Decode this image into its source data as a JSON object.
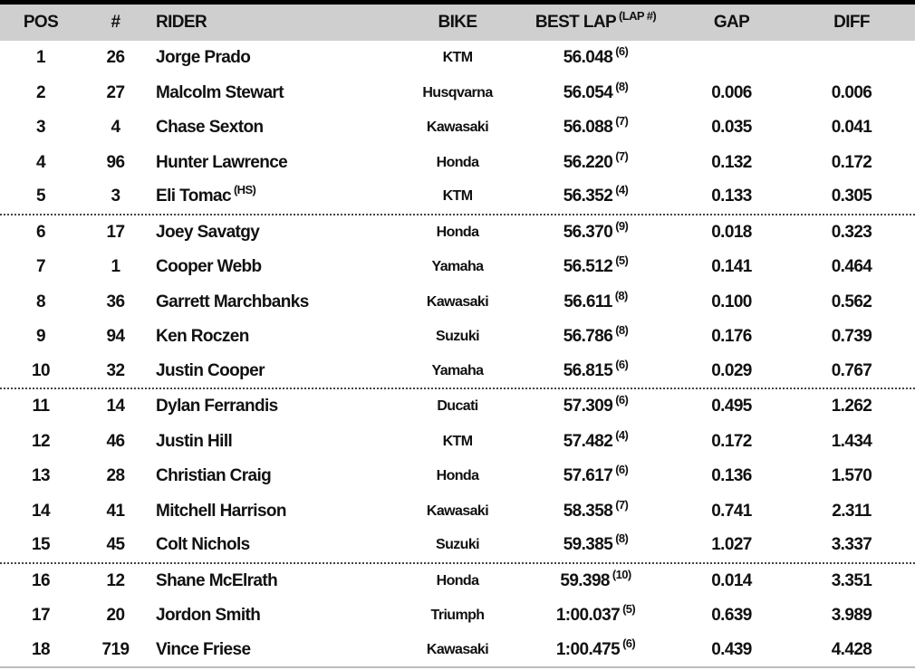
{
  "headers": {
    "pos": "POS",
    "num": "#",
    "rider": "RIDER",
    "bike": "BIKE",
    "best": "BEST LAP",
    "best_sup": "(LAP #)",
    "gap": "GAP",
    "diff": "DIFF"
  },
  "rows": [
    {
      "pos": "1",
      "num": "26",
      "rider": "Jorge Prado",
      "tag": "",
      "bike": "KTM",
      "best": "56.048",
      "lap": "(6)",
      "gap": "",
      "diff": ""
    },
    {
      "pos": "2",
      "num": "27",
      "rider": "Malcolm Stewart",
      "tag": "",
      "bike": "Husqvarna",
      "best": "56.054",
      "lap": "(8)",
      "gap": "0.006",
      "diff": "0.006"
    },
    {
      "pos": "3",
      "num": "4",
      "rider": "Chase Sexton",
      "tag": "",
      "bike": "Kawasaki",
      "best": "56.088",
      "lap": "(7)",
      "gap": "0.035",
      "diff": "0.041"
    },
    {
      "pos": "4",
      "num": "96",
      "rider": "Hunter Lawrence",
      "tag": "",
      "bike": "Honda",
      "best": "56.220",
      "lap": "(7)",
      "gap": "0.132",
      "diff": "0.172"
    },
    {
      "pos": "5",
      "num": "3",
      "rider": "Eli Tomac",
      "tag": "(HS)",
      "bike": "KTM",
      "best": "56.352",
      "lap": "(4)",
      "gap": "0.133",
      "diff": "0.305"
    },
    {
      "pos": "6",
      "num": "17",
      "rider": "Joey Savatgy",
      "tag": "",
      "bike": "Honda",
      "best": "56.370",
      "lap": "(9)",
      "gap": "0.018",
      "diff": "0.323"
    },
    {
      "pos": "7",
      "num": "1",
      "rider": "Cooper Webb",
      "tag": "",
      "bike": "Yamaha",
      "best": "56.512",
      "lap": "(5)",
      "gap": "0.141",
      "diff": "0.464"
    },
    {
      "pos": "8",
      "num": "36",
      "rider": "Garrett Marchbanks",
      "tag": "",
      "bike": "Kawasaki",
      "best": "56.611",
      "lap": "(8)",
      "gap": "0.100",
      "diff": "0.562"
    },
    {
      "pos": "9",
      "num": "94",
      "rider": "Ken Roczen",
      "tag": "",
      "bike": "Suzuki",
      "best": "56.786",
      "lap": "(8)",
      "gap": "0.176",
      "diff": "0.739"
    },
    {
      "pos": "10",
      "num": "32",
      "rider": "Justin Cooper",
      "tag": "",
      "bike": "Yamaha",
      "best": "56.815",
      "lap": "(6)",
      "gap": "0.029",
      "diff": "0.767"
    },
    {
      "pos": "11",
      "num": "14",
      "rider": "Dylan Ferrandis",
      "tag": "",
      "bike": "Ducati",
      "best": "57.309",
      "lap": "(6)",
      "gap": "0.495",
      "diff": "1.262"
    },
    {
      "pos": "12",
      "num": "46",
      "rider": "Justin Hill",
      "tag": "",
      "bike": "KTM",
      "best": "57.482",
      "lap": "(4)",
      "gap": "0.172",
      "diff": "1.434"
    },
    {
      "pos": "13",
      "num": "28",
      "rider": "Christian Craig",
      "tag": "",
      "bike": "Honda",
      "best": "57.617",
      "lap": "(6)",
      "gap": "0.136",
      "diff": "1.570"
    },
    {
      "pos": "14",
      "num": "41",
      "rider": "Mitchell Harrison",
      "tag": "",
      "bike": "Kawasaki",
      "best": "58.358",
      "lap": "(7)",
      "gap": "0.741",
      "diff": "2.311"
    },
    {
      "pos": "15",
      "num": "45",
      "rider": "Colt Nichols",
      "tag": "",
      "bike": "Suzuki",
      "best": "59.385",
      "lap": "(8)",
      "gap": "1.027",
      "diff": "3.337"
    },
    {
      "pos": "16",
      "num": "12",
      "rider": "Shane McElrath",
      "tag": "",
      "bike": "Honda",
      "best": "59.398",
      "lap": "(10)",
      "gap": "0.014",
      "diff": "3.351"
    },
    {
      "pos": "17",
      "num": "20",
      "rider": "Jordon Smith",
      "tag": "",
      "bike": "Triumph",
      "best": "1:00.037",
      "lap": "(5)",
      "gap": "0.639",
      "diff": "3.989"
    },
    {
      "pos": "18",
      "num": "719",
      "rider": "Vince Friese",
      "tag": "",
      "bike": "Kawasaki",
      "best": "1:00.475",
      "lap": "(6)",
      "gap": "0.439",
      "diff": "4.428"
    }
  ]
}
